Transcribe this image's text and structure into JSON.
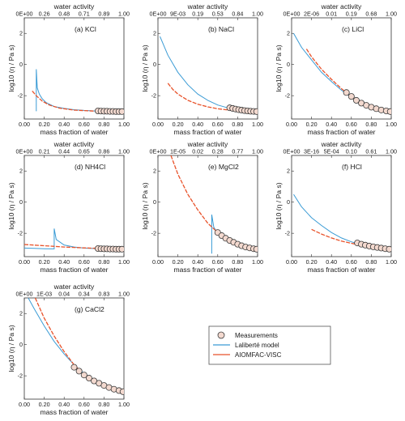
{
  "legend": {
    "measurements": "Measurements",
    "laliberte": "Laliberté model",
    "aiomfac": "AIOMFAC-VISC"
  },
  "colors": {
    "laliberte": "#3a9bd5",
    "aiomfac": "#e8522a",
    "measurement_edge": "#3a3a3a",
    "measurement_fill": "#f3d9cf"
  },
  "chart_data": [
    {
      "type": "line",
      "panel_label": "(a)",
      "electrolyte": "KCl",
      "xlabel": "mass fraction of water",
      "ylabel": "log10 (η / Pa s)",
      "top_xlabel": "water activity",
      "xlim": [
        0,
        1
      ],
      "ylim": [
        -3.5,
        3
      ],
      "x_ticks": [
        "0.00",
        "0.20",
        "0.40",
        "0.60",
        "0.80",
        "1.00"
      ],
      "y_ticks": [
        "-2",
        "0",
        "2"
      ],
      "top_ticks": [
        "0E+00",
        "0.26",
        "0.48",
        "0.71",
        "0.89",
        "1.00"
      ],
      "series": [
        {
          "name": "Laliberté model",
          "x": [
            0.12,
            0.12,
            0.13,
            0.15,
            0.18,
            0.22,
            0.3,
            0.4,
            0.5,
            0.6,
            0.7,
            0.8,
            0.9,
            1.0
          ],
          "y": [
            -3.0,
            -0.3,
            -1.5,
            -1.9,
            -2.2,
            -2.45,
            -2.7,
            -2.82,
            -2.9,
            -2.95,
            -2.98,
            -3.0,
            -3.01,
            -3.02
          ]
        },
        {
          "name": "AIOMFAC-VISC",
          "x": [
            0.08,
            0.12,
            0.18,
            0.25,
            0.35,
            0.5,
            0.7,
            0.85,
            1.0
          ],
          "y": [
            -1.7,
            -2.0,
            -2.35,
            -2.6,
            -2.8,
            -2.93,
            -2.99,
            -3.01,
            -3.02
          ]
        },
        {
          "name": "Measurements",
          "x": [
            0.74,
            0.77,
            0.8,
            0.83,
            0.86,
            0.89,
            0.92,
            0.95,
            0.98
          ],
          "y": [
            -2.98,
            -2.99,
            -3.0,
            -3.0,
            -3.01,
            -3.01,
            -3.02,
            -3.02,
            -3.02
          ]
        }
      ]
    },
    {
      "type": "line",
      "panel_label": "(b)",
      "electrolyte": "NaCl",
      "xlabel": "mass fraction of water",
      "ylabel": "log10 (η / Pa s)",
      "top_xlabel": "water activity",
      "xlim": [
        0,
        1
      ],
      "ylim": [
        -3.5,
        3
      ],
      "x_ticks": [
        "0.00",
        "0.20",
        "0.40",
        "0.60",
        "0.80",
        "1.00"
      ],
      "y_ticks": [
        "-2",
        "0",
        "2"
      ],
      "top_ticks": [
        "0E+00",
        "9E-03",
        "0.19",
        "0.53",
        "0.84",
        "1.00"
      ],
      "series": [
        {
          "name": "Laliberté model",
          "x": [
            0.02,
            0.1,
            0.2,
            0.3,
            0.4,
            0.5,
            0.6,
            0.7,
            0.8,
            0.9,
            1.0
          ],
          "y": [
            1.8,
            0.6,
            -0.5,
            -1.3,
            -1.9,
            -2.3,
            -2.6,
            -2.78,
            -2.9,
            -2.97,
            -3.02
          ]
        },
        {
          "name": "AIOMFAC-VISC",
          "x": [
            0.1,
            0.15,
            0.2,
            0.3,
            0.4,
            0.5,
            0.6,
            0.7,
            0.8,
            0.9,
            1.0
          ],
          "y": [
            -1.2,
            -1.6,
            -1.9,
            -2.3,
            -2.55,
            -2.72,
            -2.84,
            -2.92,
            -2.97,
            -3.0,
            -3.02
          ]
        },
        {
          "name": "Measurements",
          "x": [
            0.72,
            0.75,
            0.78,
            0.81,
            0.84,
            0.87,
            0.9,
            0.93,
            0.96,
            0.99
          ],
          "y": [
            -2.78,
            -2.82,
            -2.86,
            -2.9,
            -2.93,
            -2.96,
            -2.98,
            -3.0,
            -3.01,
            -3.02
          ]
        }
      ]
    },
    {
      "type": "line",
      "panel_label": "(c)",
      "electrolyte": "LiCl",
      "xlabel": "mass fraction of water",
      "ylabel": "log10 (η / Pa s)",
      "top_xlabel": "water activity",
      "xlim": [
        0,
        1
      ],
      "ylim": [
        -3.5,
        3
      ],
      "x_ticks": [
        "0.00",
        "0.20",
        "0.40",
        "0.60",
        "0.80",
        "1.00"
      ],
      "y_ticks": [
        "-2",
        "0",
        "2"
      ],
      "top_ticks": [
        "0E+00",
        "2E-06",
        "0.01",
        "0.19",
        "0.68",
        "1.00"
      ],
      "series": [
        {
          "name": "Laliberté model",
          "x": [
            0.02,
            0.1,
            0.2,
            0.3,
            0.4,
            0.5,
            0.6,
            0.7,
            0.8,
            0.9,
            1.0
          ],
          "y": [
            2.0,
            1.1,
            0.3,
            -0.5,
            -1.1,
            -1.65,
            -2.1,
            -2.45,
            -2.72,
            -2.9,
            -3.02
          ]
        },
        {
          "name": "AIOMFAC-VISC",
          "x": [
            0.15,
            0.2,
            0.3,
            0.4,
            0.5,
            0.6,
            0.7,
            0.8,
            0.9,
            1.0
          ],
          "y": [
            1.0,
            0.5,
            -0.3,
            -0.95,
            -1.55,
            -2.05,
            -2.45,
            -2.72,
            -2.9,
            -3.02
          ]
        },
        {
          "name": "Measurements",
          "x": [
            0.55,
            0.6,
            0.65,
            0.7,
            0.75,
            0.8,
            0.85,
            0.9,
            0.95,
            0.99
          ],
          "y": [
            -1.8,
            -2.05,
            -2.3,
            -2.48,
            -2.62,
            -2.74,
            -2.84,
            -2.92,
            -2.98,
            -3.02
          ]
        }
      ]
    },
    {
      "type": "line",
      "panel_label": "(d)",
      "electrolyte": "NH4Cl",
      "xlabel": "mass fraction of water",
      "ylabel": "log10 (η / Pa s)",
      "top_xlabel": "water activity",
      "xlim": [
        0,
        1
      ],
      "ylim": [
        -3.5,
        3
      ],
      "x_ticks": [
        "0.00",
        "0.20",
        "0.40",
        "0.60",
        "0.80",
        "1.00"
      ],
      "y_ticks": [
        "-2",
        "0",
        "2"
      ],
      "top_ticks": [
        "0E+00",
        "0.21",
        "0.44",
        "0.65",
        "0.86",
        "1.00"
      ],
      "series": [
        {
          "name": "Laliberté model",
          "x": [
            0.0,
            0.1,
            0.2,
            0.28,
            0.3,
            0.3,
            0.32,
            0.4,
            0.5,
            0.6,
            0.7,
            0.8,
            0.9,
            1.0
          ],
          "y": [
            -2.95,
            -2.97,
            -2.99,
            -3.0,
            -3.0,
            -1.7,
            -2.4,
            -2.75,
            -2.88,
            -2.95,
            -2.98,
            -3.0,
            -3.01,
            -3.02
          ]
        },
        {
          "name": "AIOMFAC-VISC",
          "x": [
            0.0,
            0.2,
            0.4,
            0.6,
            0.8,
            1.0
          ],
          "y": [
            -2.72,
            -2.8,
            -2.88,
            -2.94,
            -2.98,
            -3.02
          ]
        },
        {
          "name": "Measurements",
          "x": [
            0.74,
            0.77,
            0.8,
            0.83,
            0.86,
            0.89,
            0.92,
            0.95,
            0.98
          ],
          "y": [
            -2.98,
            -2.99,
            -3.0,
            -3.0,
            -3.01,
            -3.01,
            -3.02,
            -3.02,
            -3.02
          ]
        }
      ]
    },
    {
      "type": "line",
      "panel_label": "(e)",
      "electrolyte": "MgCl2",
      "xlabel": "mass fraction of water",
      "ylabel": "log10 (η / Pa s)",
      "top_xlabel": "water activity",
      "xlim": [
        0,
        1
      ],
      "ylim": [
        -3.5,
        3
      ],
      "x_ticks": [
        "0.00",
        "0.20",
        "0.40",
        "0.60",
        "0.80",
        "1.00"
      ],
      "y_ticks": [
        "-2",
        "0",
        "2"
      ],
      "top_ticks": [
        "0E+00",
        "1E-05",
        "0.02",
        "0.28",
        "0.77",
        "1.00"
      ],
      "series": [
        {
          "name": "Laliberté model",
          "x": [
            0.54,
            0.54,
            0.56,
            0.6,
            0.65,
            0.7,
            0.8,
            0.9,
            1.0
          ],
          "y": [
            -3.3,
            -0.8,
            -1.6,
            -2.0,
            -2.25,
            -2.45,
            -2.72,
            -2.9,
            -3.02
          ]
        },
        {
          "name": "AIOMFAC-VISC",
          "x": [
            0.13,
            0.2,
            0.3,
            0.4,
            0.5,
            0.6,
            0.7,
            0.8,
            0.9,
            1.0
          ],
          "y": [
            3.0,
            1.8,
            0.5,
            -0.5,
            -1.35,
            -1.95,
            -2.4,
            -2.72,
            -2.9,
            -3.02
          ]
        },
        {
          "name": "Measurements",
          "x": [
            0.6,
            0.64,
            0.68,
            0.72,
            0.76,
            0.8,
            0.84,
            0.88,
            0.92,
            0.96,
            0.99
          ],
          "y": [
            -1.95,
            -2.15,
            -2.32,
            -2.46,
            -2.58,
            -2.7,
            -2.8,
            -2.88,
            -2.94,
            -2.99,
            -3.02
          ]
        }
      ]
    },
    {
      "type": "line",
      "panel_label": "(f)",
      "electrolyte": "HCl",
      "xlabel": "mass fraction of water",
      "ylabel": "log10 (η / Pa s)",
      "top_xlabel": "water activity",
      "xlim": [
        0,
        1
      ],
      "ylim": [
        -3.5,
        3
      ],
      "x_ticks": [
        "0.00",
        "0.20",
        "0.40",
        "0.60",
        "0.80",
        "1.00"
      ],
      "y_ticks": [
        "-2",
        "0",
        "2"
      ],
      "top_ticks": [
        "0E+00",
        "3E-16",
        "5E-04",
        "0.10",
        "0.61",
        "1.00"
      ],
      "series": [
        {
          "name": "Laliberté model",
          "x": [
            0.02,
            0.1,
            0.2,
            0.3,
            0.4,
            0.5,
            0.6,
            0.7,
            0.8,
            0.9,
            1.0
          ],
          "y": [
            0.5,
            -0.3,
            -1.0,
            -1.5,
            -1.95,
            -2.3,
            -2.55,
            -2.72,
            -2.86,
            -2.95,
            -3.02
          ]
        },
        {
          "name": "AIOMFAC-VISC",
          "x": [
            0.2,
            0.3,
            0.4,
            0.5,
            0.6,
            0.7,
            0.8,
            0.9,
            1.0
          ],
          "y": [
            -1.75,
            -2.05,
            -2.3,
            -2.5,
            -2.64,
            -2.77,
            -2.88,
            -2.96,
            -3.02
          ]
        },
        {
          "name": "Measurements",
          "x": [
            0.66,
            0.7,
            0.74,
            0.78,
            0.82,
            0.86,
            0.9,
            0.94,
            0.98
          ],
          "y": [
            -2.62,
            -2.7,
            -2.76,
            -2.82,
            -2.87,
            -2.91,
            -2.95,
            -2.99,
            -3.02
          ]
        }
      ]
    },
    {
      "type": "line",
      "panel_label": "(g)",
      "electrolyte": "CaCl2",
      "xlabel": "mass fraction of water",
      "ylabel": "log10 (η / Pa s)",
      "top_xlabel": "water activity",
      "xlim": [
        0,
        1
      ],
      "ylim": [
        -3.5,
        3
      ],
      "x_ticks": [
        "0.00",
        "0.20",
        "0.40",
        "0.60",
        "0.80",
        "1.00"
      ],
      "y_ticks": [
        "-2",
        "0",
        "2"
      ],
      "top_ticks": [
        "0E+00",
        "1E-03",
        "0.04",
        "0.34",
        "0.83",
        "1.00"
      ],
      "series": [
        {
          "name": "Laliberté model",
          "x": [
            0.04,
            0.1,
            0.2,
            0.3,
            0.4,
            0.5,
            0.6,
            0.7,
            0.8,
            0.9,
            1.0
          ],
          "y": [
            3.0,
            2.3,
            1.2,
            0.2,
            -0.6,
            -1.3,
            -1.85,
            -2.3,
            -2.65,
            -2.87,
            -3.02
          ]
        },
        {
          "name": "AIOMFAC-VISC",
          "x": [
            0.11,
            0.2,
            0.3,
            0.4,
            0.5,
            0.6,
            0.7,
            0.8,
            0.9,
            1.0
          ],
          "y": [
            3.0,
            1.7,
            0.55,
            -0.45,
            -1.3,
            -1.9,
            -2.35,
            -2.68,
            -2.88,
            -3.02
          ]
        },
        {
          "name": "Measurements",
          "x": [
            0.5,
            0.55,
            0.6,
            0.65,
            0.7,
            0.75,
            0.8,
            0.85,
            0.9,
            0.95,
            0.99
          ],
          "y": [
            -1.45,
            -1.7,
            -1.95,
            -2.15,
            -2.33,
            -2.48,
            -2.62,
            -2.75,
            -2.86,
            -2.95,
            -3.02
          ]
        }
      ]
    }
  ]
}
